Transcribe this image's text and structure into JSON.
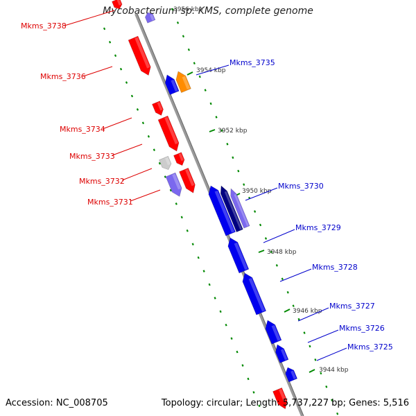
{
  "title": "Mycobacterium sp. KMS, complete genome",
  "footer": {
    "accession": "Accession: NC_008705",
    "topology": "Topology: circular; Length: 5,737,227 bp; Genes: 5,516"
  },
  "colors": {
    "forward": "#ff0000",
    "reverse": "#0000ee",
    "backbone": "#888888",
    "tick": "#008800",
    "pseudo": "#cccccc",
    "highlight": "#ff8c00",
    "dark_reverse": "#000080",
    "light_reverse": "#7b68ee"
  },
  "kbp_labels": [
    "3956 kbp",
    "3954 kbp",
    "3952 kbp",
    "3950 kbp",
    "3948 kbp",
    "3946 kbp",
    "3944 kbp"
  ],
  "genes_left": [
    "Mkms_3738",
    "Mkms_3736",
    "Mkms_3734",
    "Mkms_3733",
    "Mkms_3732",
    "Mkms_3731"
  ],
  "genes_right": [
    "Mkms_3735",
    "Mkms_3730",
    "Mkms_3729",
    "Mkms_3728",
    "Mkms_3727",
    "Mkms_3726",
    "Mkms_3725"
  ]
}
